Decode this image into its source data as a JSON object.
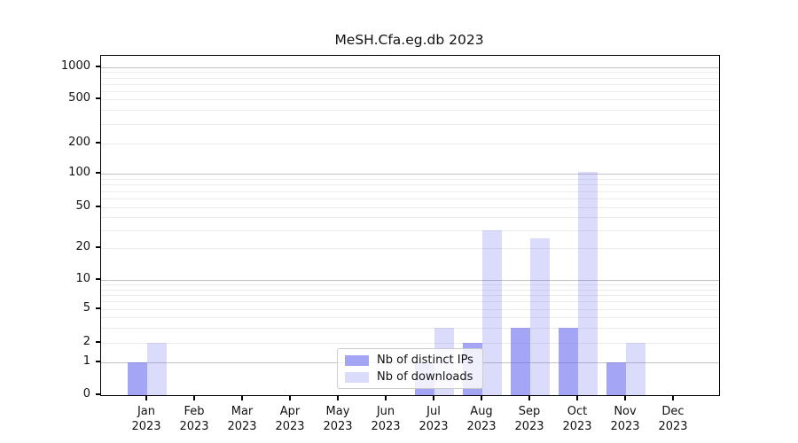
{
  "chart_data": {
    "type": "bar",
    "title": "MeSH.Cfa.eg.db 2023",
    "categories": [
      "Jan",
      "Feb",
      "Mar",
      "Apr",
      "May",
      "Jun",
      "Jul",
      "Aug",
      "Sep",
      "Oct",
      "Nov",
      "Dec"
    ],
    "category_year": "2023",
    "series": [
      {
        "name": "Nb of distinct IPs",
        "color": "#a6a6f6",
        "fill": "rgba(110,110,240,0.62)",
        "values": [
          1,
          0,
          0,
          0,
          0,
          0,
          1,
          2,
          3,
          3,
          1,
          0
        ]
      },
      {
        "name": "Nb of downloads",
        "color": "#dcdcf9",
        "fill": "rgba(110,110,240,0.25)",
        "values": [
          2,
          0,
          0,
          0,
          0,
          0,
          3,
          30,
          25,
          105,
          2,
          0
        ]
      }
    ],
    "y_ticks": [
      0,
      1,
      2,
      5,
      10,
      20,
      50,
      100,
      200,
      500,
      1000
    ],
    "y_scale": "symlog",
    "ylim": [
      0,
      1300
    ],
    "grid": "horizontal, major and minor",
    "legend_position": "lower center",
    "axis_color": "#000000",
    "major_grid_color": "#c2c2c2",
    "minor_grid_color": "#ececec"
  }
}
